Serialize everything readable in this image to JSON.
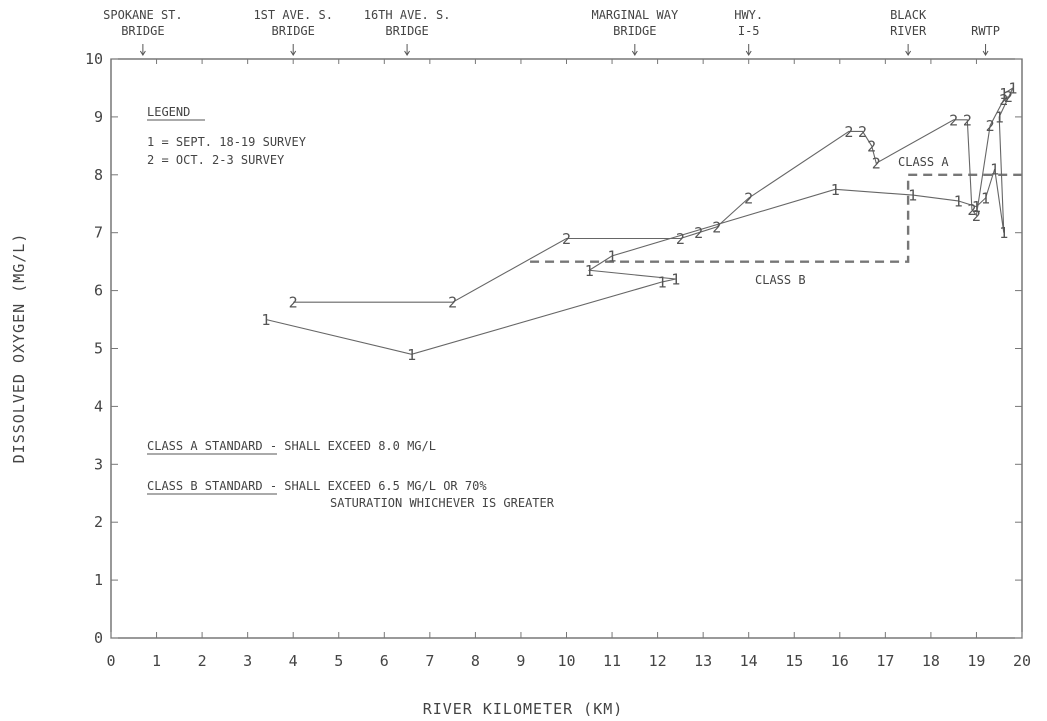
{
  "chart_data": {
    "type": "line",
    "title": "",
    "xlabel": "RIVER KILOMETER (KM)",
    "ylabel": "DISSOLVED OXYGEN (MG/L)",
    "xlim": [
      0,
      20
    ],
    "ylim": [
      0,
      10
    ],
    "x_ticks": [
      "0",
      "1",
      "2",
      "3",
      "4",
      "5",
      "6",
      "7",
      "8",
      "9",
      "10",
      "11",
      "12",
      "13",
      "14",
      "15",
      "16",
      "17",
      "18",
      "19",
      "20"
    ],
    "y_ticks": [
      "0",
      "1",
      "2",
      "3",
      "4",
      "5",
      "6",
      "7",
      "8",
      "9",
      "10"
    ],
    "grid": false,
    "legend": {
      "title": "LEGEND",
      "entries": [
        "1 = SEPT. 18-19 SURVEY",
        "2 = OCT. 2-3 SURVEY"
      ],
      "placement": "top-left"
    },
    "series": [
      {
        "marker": "1",
        "points": [
          [
            3.4,
            5.5
          ],
          [
            6.6,
            4.9
          ],
          [
            12.1,
            6.15
          ],
          [
            12.4,
            6.2
          ],
          [
            10.5,
            6.35
          ],
          [
            11.0,
            6.6
          ],
          [
            15.9,
            7.75
          ],
          [
            17.6,
            7.65
          ],
          [
            18.6,
            7.55
          ],
          [
            19.0,
            7.45
          ],
          [
            19.2,
            7.6
          ],
          [
            19.4,
            8.1
          ],
          [
            19.6,
            7.0
          ],
          [
            19.5,
            9.0
          ],
          [
            19.8,
            9.5
          ],
          [
            19.6,
            9.4
          ]
        ]
      },
      {
        "marker": "2",
        "points": [
          [
            4.0,
            5.8
          ],
          [
            7.5,
            5.8
          ],
          [
            10.0,
            6.9
          ],
          [
            12.5,
            6.9
          ],
          [
            12.9,
            7.0
          ],
          [
            13.3,
            7.1
          ],
          [
            14.0,
            7.6
          ],
          [
            16.2,
            8.75
          ],
          [
            16.5,
            8.75
          ],
          [
            16.7,
            8.5
          ],
          [
            16.8,
            8.2
          ],
          [
            18.5,
            8.95
          ],
          [
            18.8,
            8.95
          ],
          [
            18.9,
            7.4
          ],
          [
            19.0,
            7.3
          ],
          [
            19.3,
            8.85
          ],
          [
            19.6,
            9.3
          ],
          [
            19.7,
            9.35
          ]
        ]
      }
    ],
    "standards": [
      {
        "name": "CLASS A",
        "value": 8.0,
        "x_start": 17.5,
        "x_end": 20.0
      },
      {
        "name": "CLASS B",
        "value": 6.5,
        "x_start": 9.2,
        "x_end": 17.5
      }
    ],
    "top_landmarks": [
      {
        "lines": [
          "SPOKANE ST.",
          "BRIDGE"
        ],
        "x": 0.7
      },
      {
        "lines": [
          "1ST AVE. S.",
          "BRIDGE"
        ],
        "x": 4.0
      },
      {
        "lines": [
          "16TH AVE. S.",
          "BRIDGE"
        ],
        "x": 6.5
      },
      {
        "lines": [
          "MARGINAL WAY",
          "BRIDGE"
        ],
        "x": 11.5
      },
      {
        "lines": [
          "HWY.",
          "I-5"
        ],
        "x": 14.0
      },
      {
        "lines": [
          "BLACK",
          "RIVER"
        ],
        "x": 17.5
      },
      {
        "lines": [
          "RWTP"
        ],
        "x": 19.2
      }
    ],
    "annotations": {
      "class_a_label": "CLASS A",
      "class_b_label": "CLASS B",
      "class_a_standard_title": "CLASS A STANDARD",
      "class_a_standard_text": " - SHALL EXCEED 8.0 MG/L",
      "class_b_standard_title": "CLASS B STANDARD",
      "class_b_standard_text_1": " - SHALL EXCEED 6.5 MG/L OR 70%",
      "class_b_standard_text_2": "SATURATION WHICHEVER IS GREATER"
    }
  }
}
